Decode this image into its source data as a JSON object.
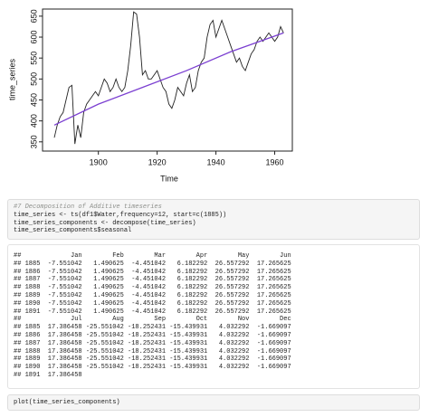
{
  "chart_data": {
    "type": "line",
    "xlabel": "Time",
    "ylabel": "time_series",
    "x": [
      1885,
      1886,
      1887,
      1888,
      1889,
      1890,
      1891,
      1892,
      1893,
      1894,
      1895,
      1896,
      1897,
      1898,
      1899,
      1900,
      1901,
      1902,
      1903,
      1904,
      1905,
      1906,
      1907,
      1908,
      1909,
      1910,
      1911,
      1912,
      1913,
      1914,
      1915,
      1916,
      1917,
      1918,
      1919,
      1920,
      1921,
      1922,
      1923,
      1924,
      1925,
      1926,
      1927,
      1928,
      1929,
      1930,
      1931,
      1932,
      1933,
      1934,
      1935,
      1936,
      1937,
      1938,
      1939,
      1940,
      1941,
      1942,
      1943,
      1944,
      1945,
      1946,
      1947,
      1948,
      1949,
      1950,
      1951,
      1952,
      1953,
      1954,
      1955,
      1956,
      1957,
      1958,
      1959,
      1960,
      1961,
      1962,
      1963
    ],
    "series": [
      {
        "color": "#222222",
        "values": [
          360,
          390,
          410,
          420,
          450,
          480,
          485,
          345,
          390,
          360,
          420,
          440,
          450,
          460,
          470,
          460,
          480,
          500,
          490,
          470,
          480,
          500,
          480,
          470,
          480,
          520,
          580,
          660,
          655,
          600,
          510,
          520,
          500,
          500,
          510,
          520,
          500,
          480,
          470,
          440,
          430,
          450,
          480,
          470,
          460,
          490,
          510,
          470,
          480,
          520,
          540,
          550,
          600,
          630,
          640,
          600,
          620,
          640,
          620,
          600,
          580,
          560,
          540,
          550,
          530,
          520,
          540,
          560,
          570,
          590,
          600,
          590,
          600,
          610,
          600,
          590,
          600,
          625,
          610
        ]
      },
      {
        "color": "#7b3fd1",
        "x": [
          1885,
          1900,
          1915,
          1930,
          1945,
          1963
        ],
        "values": [
          390,
          440,
          480,
          520,
          565,
          610
        ]
      }
    ],
    "xlim": [
      1881,
      1966
    ],
    "xticks": [
      1900,
      1920,
      1940,
      1960
    ],
    "ylim": [
      328,
      667
    ],
    "yticks": [
      350,
      400,
      450,
      500,
      550,
      600,
      650
    ]
  },
  "code_block_1": {
    "lines": [
      "#7 Decomposition of Additive timeseries",
      "time_series <- ts(df1$Water,frequency=12, start=c(1885))",
      "time_series_components <- decompose(time_series)",
      "time_series_components$seasonal"
    ]
  },
  "output_block": {
    "lines": [
      "##             Jan        Feb        Mar        Apr        May        Jun",
      "## 1885  -7.551042   1.490625  -4.451042   6.182292  26.557292  17.265625",
      "## 1886  -7.551042   1.490625  -4.451042   6.182292  26.557292  17.265625",
      "## 1887  -7.551042   1.490625  -4.451042   6.182292  26.557292  17.265625",
      "## 1888  -7.551042   1.490625  -4.451042   6.182292  26.557292  17.265625",
      "## 1889  -7.551042   1.490625  -4.451042   6.182292  26.557292  17.265625",
      "## 1890  -7.551042   1.490625  -4.451042   6.182292  26.557292  17.265625",
      "## 1891  -7.551042   1.490625  -4.451042   6.182292  26.557292  17.265625",
      "##             Jul        Aug        Sep        Oct        Nov        Dec",
      "## 1885  17.386458 -25.551042 -18.252431 -15.439931   4.032292  -1.669097",
      "## 1886  17.386458 -25.551042 -18.252431 -15.439931   4.032292  -1.669097",
      "## 1887  17.386458 -25.551042 -18.252431 -15.439931   4.032292  -1.669097",
      "## 1888  17.386458 -25.551042 -18.252431 -15.439931   4.032292  -1.669097",
      "## 1889  17.386458 -25.551042 -18.252431 -15.439931   4.032292  -1.669097",
      "## 1890  17.386458 -25.551042 -18.252431 -15.439931   4.032292  -1.669097",
      "## 1891  17.386458"
    ]
  },
  "code_block_2": {
    "lines": [
      "plot(time_series_components)"
    ]
  }
}
